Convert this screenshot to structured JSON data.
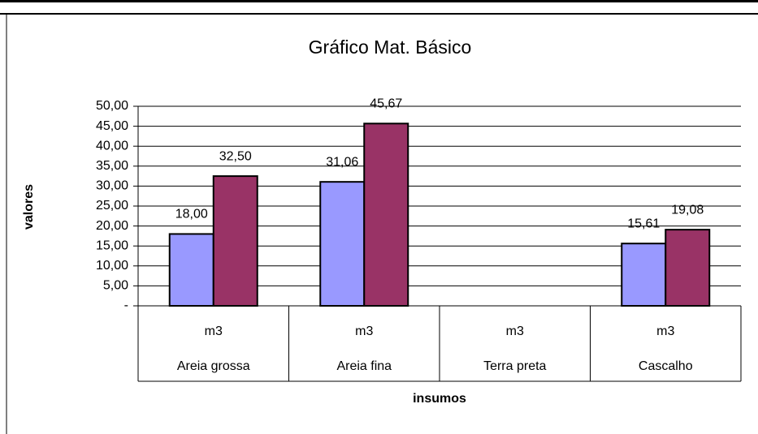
{
  "chart_data": {
    "type": "bar",
    "title": "Gráfico Mat. Básico",
    "y_label": "valores",
    "x_label": "insumos",
    "categories": [
      "Areia grossa",
      "Areia fina",
      "Terra preta",
      "Cascalho"
    ],
    "units": [
      "m3",
      "m3",
      "m3",
      "m3"
    ],
    "series": [
      {
        "color": "#9999ff",
        "values": [
          18.0,
          31.06,
          null,
          15.61
        ],
        "value_labels": [
          "18,00",
          "31,06",
          null,
          "15,61"
        ]
      },
      {
        "color": "#993366",
        "values": [
          32.5,
          45.67,
          null,
          19.08
        ],
        "value_labels": [
          "32,50",
          "45,67",
          null,
          "19,08"
        ]
      }
    ],
    "ylim": [
      0,
      50
    ],
    "yticks": [
      {
        "value": 0,
        "label": "-"
      },
      {
        "value": 5,
        "label": "5,00"
      },
      {
        "value": 10,
        "label": "10,00"
      },
      {
        "value": 15,
        "label": "15,00"
      },
      {
        "value": 20,
        "label": "20,00"
      },
      {
        "value": 25,
        "label": "25,00"
      },
      {
        "value": 30,
        "label": "30,00"
      },
      {
        "value": 35,
        "label": "35,00"
      },
      {
        "value": 40,
        "label": "40,00"
      },
      {
        "value": 45,
        "label": "45,00"
      },
      {
        "value": 50,
        "label": "50,00"
      }
    ],
    "grid": true
  }
}
